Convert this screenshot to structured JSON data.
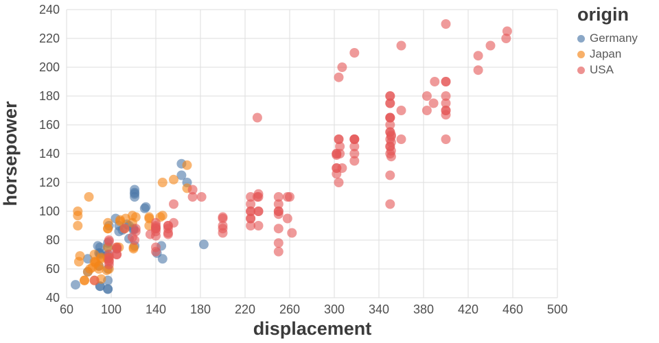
{
  "chart_data": {
    "type": "scatter",
    "title": "",
    "xlabel": "displacement",
    "ylabel": "horsepower",
    "xlim": [
      60,
      500
    ],
    "ylim": [
      40,
      240
    ],
    "x_ticks": [
      60,
      100,
      140,
      180,
      220,
      260,
      300,
      340,
      380,
      420,
      460,
      500
    ],
    "y_ticks": [
      40,
      60,
      80,
      100,
      120,
      140,
      160,
      180,
      200,
      220,
      240
    ],
    "grid": true,
    "grid_color": "#dddddd",
    "background": "#ffffff",
    "marker": {
      "size": 14,
      "opacity": 0.6
    },
    "legend": {
      "title": "origin",
      "position": "top-right",
      "entries": [
        {
          "label": "Germany",
          "color": "#4c78a8"
        },
        {
          "label": "Japan",
          "color": "#f58518"
        },
        {
          "label": "USA",
          "color": "#e45756"
        }
      ]
    },
    "series": [
      {
        "name": "Germany",
        "color": "#4c78a8",
        "points": [
          [
            68,
            49
          ],
          [
            79,
            58
          ],
          [
            79,
            67
          ],
          [
            88,
            76
          ],
          [
            89,
            62
          ],
          [
            89,
            71
          ],
          [
            90,
            48
          ],
          [
            90,
            48
          ],
          [
            90,
            70
          ],
          [
            90,
            71
          ],
          [
            90,
            75
          ],
          [
            96,
            69
          ],
          [
            97,
            46
          ],
          [
            97,
            46
          ],
          [
            97,
            52
          ],
          [
            97,
            60
          ],
          [
            97,
            70
          ],
          [
            97,
            75
          ],
          [
            97,
            78
          ],
          [
            98,
            90
          ],
          [
            104,
            95
          ],
          [
            105,
            74
          ],
          [
            107,
            86
          ],
          [
            107,
            90
          ],
          [
            110,
            87
          ],
          [
            114,
            91
          ],
          [
            116,
            81
          ],
          [
            116,
            90
          ],
          [
            120,
            87
          ],
          [
            120,
            88
          ],
          [
            121,
            76
          ],
          [
            121,
            110
          ],
          [
            121,
            112
          ],
          [
            121,
            113
          ],
          [
            121,
            115
          ],
          [
            130,
            102
          ],
          [
            131,
            103
          ],
          [
            141,
            71
          ],
          [
            145,
            76
          ],
          [
            146,
            67
          ],
          [
            163,
            125
          ],
          [
            163,
            133
          ],
          [
            168,
            120
          ],
          [
            183,
            77
          ]
        ]
      },
      {
        "name": "Japan",
        "color": "#f58518",
        "points": [
          [
            70,
            90
          ],
          [
            70,
            97
          ],
          [
            70,
            100
          ],
          [
            71,
            65
          ],
          [
            72,
            69
          ],
          [
            76,
            52
          ],
          [
            76,
            52
          ],
          [
            79,
            58
          ],
          [
            80,
            110
          ],
          [
            81,
            60
          ],
          [
            83,
            61
          ],
          [
            85,
            52
          ],
          [
            85,
            65
          ],
          [
            85,
            70
          ],
          [
            86,
            64
          ],
          [
            86,
            65
          ],
          [
            89,
            60
          ],
          [
            89,
            62
          ],
          [
            91,
            53
          ],
          [
            91,
            67
          ],
          [
            91,
            68
          ],
          [
            96,
            59
          ],
          [
            97,
            67
          ],
          [
            97,
            67
          ],
          [
            97,
            75
          ],
          [
            97,
            88
          ],
          [
            97,
            88
          ],
          [
            97,
            92
          ],
          [
            98,
            60
          ],
          [
            98,
            68
          ],
          [
            105,
            75
          ],
          [
            107,
            75
          ],
          [
            108,
            93
          ],
          [
            108,
            94
          ],
          [
            112,
            88
          ],
          [
            113,
            95
          ],
          [
            119,
            92
          ],
          [
            119,
            97
          ],
          [
            120,
            74
          ],
          [
            120,
            75
          ],
          [
            122,
            96
          ],
          [
            134,
            90
          ],
          [
            134,
            95
          ],
          [
            134,
            96
          ],
          [
            144,
            96
          ],
          [
            146,
            97
          ],
          [
            146,
            120
          ],
          [
            156,
            122
          ],
          [
            168,
            116
          ],
          [
            168,
            132
          ]
        ]
      },
      {
        "name": "USA",
        "color": "#e45756",
        "points": [
          [
            85,
            52
          ],
          [
            98,
            63
          ],
          [
            98,
            65
          ],
          [
            98,
            66
          ],
          [
            98,
            68
          ],
          [
            98,
            70
          ],
          [
            98,
            79
          ],
          [
            98,
            80
          ],
          [
            105,
            70
          ],
          [
            105,
            70
          ],
          [
            105,
            74
          ],
          [
            105,
            75
          ],
          [
            112,
            88
          ],
          [
            119,
            82
          ],
          [
            121,
            80
          ],
          [
            122,
            86
          ],
          [
            122,
            88
          ],
          [
            135,
            84
          ],
          [
            140,
            72
          ],
          [
            140,
            75
          ],
          [
            140,
            83
          ],
          [
            140,
            86
          ],
          [
            140,
            88
          ],
          [
            140,
            88
          ],
          [
            140,
            89
          ],
          [
            140,
            90
          ],
          [
            140,
            92
          ],
          [
            151,
            84
          ],
          [
            151,
            85
          ],
          [
            151,
            88
          ],
          [
            151,
            90
          ],
          [
            151,
            90
          ],
          [
            156,
            92
          ],
          [
            156,
            105
          ],
          [
            173,
            110
          ],
          [
            173,
            115
          ],
          [
            181,
            110
          ],
          [
            200,
            85
          ],
          [
            200,
            88
          ],
          [
            200,
            90
          ],
          [
            200,
            95
          ],
          [
            200,
            96
          ],
          [
            225,
            90
          ],
          [
            225,
            95
          ],
          [
            225,
            95
          ],
          [
            225,
            100
          ],
          [
            225,
            100
          ],
          [
            225,
            105
          ],
          [
            225,
            110
          ],
          [
            231,
            110
          ],
          [
            231,
            165
          ],
          [
            232,
            90
          ],
          [
            232,
            100
          ],
          [
            232,
            100
          ],
          [
            232,
            110
          ],
          [
            232,
            112
          ],
          [
            250,
            72
          ],
          [
            250,
            78
          ],
          [
            250,
            88
          ],
          [
            250,
            98
          ],
          [
            250,
            100
          ],
          [
            250,
            100
          ],
          [
            250,
            105
          ],
          [
            250,
            110
          ],
          [
            258,
            95
          ],
          [
            258,
            110
          ],
          [
            260,
            110
          ],
          [
            262,
            85
          ],
          [
            302,
            126
          ],
          [
            302,
            130
          ],
          [
            302,
            130
          ],
          [
            302,
            139
          ],
          [
            302,
            140
          ],
          [
            302,
            140
          ],
          [
            304,
            120
          ],
          [
            304,
            150
          ],
          [
            304,
            150
          ],
          [
            304,
            193
          ],
          [
            305,
            140
          ],
          [
            305,
            145
          ],
          [
            307,
            130
          ],
          [
            307,
            200
          ],
          [
            318,
            135
          ],
          [
            318,
            140
          ],
          [
            318,
            145
          ],
          [
            318,
            150
          ],
          [
            318,
            150
          ],
          [
            318,
            150
          ],
          [
            318,
            210
          ],
          [
            350,
            105
          ],
          [
            350,
            125
          ],
          [
            350,
            140
          ],
          [
            350,
            145
          ],
          [
            350,
            145
          ],
          [
            350,
            150
          ],
          [
            350,
            155
          ],
          [
            350,
            155
          ],
          [
            350,
            160
          ],
          [
            350,
            165
          ],
          [
            350,
            165
          ],
          [
            350,
            165
          ],
          [
            350,
            175
          ],
          [
            350,
            175
          ],
          [
            350,
            180
          ],
          [
            350,
            180
          ],
          [
            351,
            138
          ],
          [
            351,
            142
          ],
          [
            351,
            148
          ],
          [
            351,
            152
          ],
          [
            351,
            153
          ],
          [
            360,
            150
          ],
          [
            360,
            170
          ],
          [
            360,
            215
          ],
          [
            383,
            170
          ],
          [
            383,
            180
          ],
          [
            389,
            175
          ],
          [
            390,
            190
          ],
          [
            400,
            150
          ],
          [
            400,
            167
          ],
          [
            400,
            170
          ],
          [
            400,
            170
          ],
          [
            400,
            175
          ],
          [
            400,
            180
          ],
          [
            400,
            190
          ],
          [
            400,
            190
          ],
          [
            400,
            230
          ],
          [
            429,
            198
          ],
          [
            429,
            208
          ],
          [
            440,
            215
          ],
          [
            454,
            220
          ],
          [
            455,
            225
          ]
        ]
      }
    ]
  }
}
